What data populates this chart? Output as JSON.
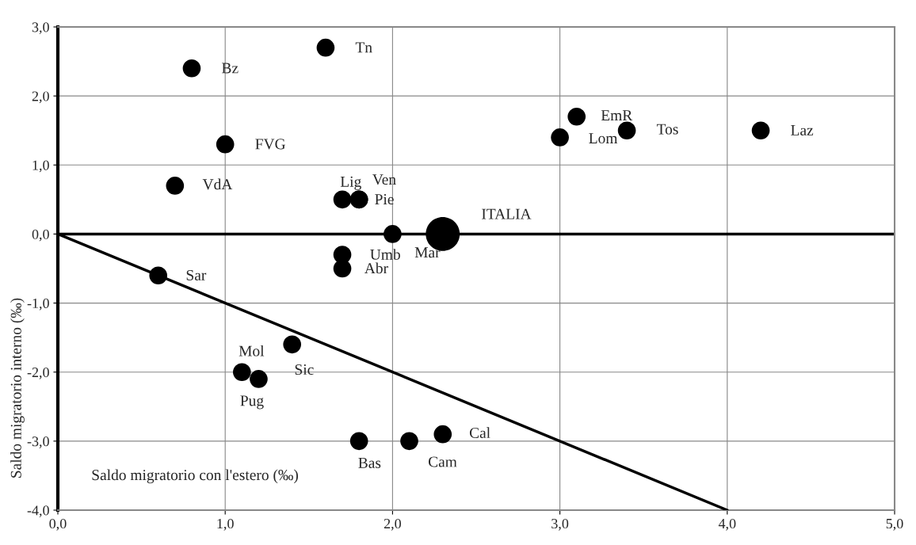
{
  "chart_data": {
    "type": "bubble",
    "xlabel": "Saldo migratorio con l'estero (‰)",
    "ylabel": "Saldo migratorio interno (‰)",
    "series": [
      {
        "marker": "circle",
        "color": "#000000",
        "x": [
          1.6,
          0.8,
          1.0,
          0.7,
          1.7,
          1.8,
          1.8,
          2.0,
          2.3,
          1.7,
          1.7,
          0.6,
          1.4,
          1.1,
          1.2,
          1.8,
          2.1,
          2.3,
          3.0,
          3.1,
          3.4,
          4.2
        ],
        "values": [
          2.7,
          2.4,
          1.3,
          0.7,
          0.5,
          0.5,
          0.5,
          0.0,
          0.0,
          -0.3,
          -0.5,
          -0.6,
          -1.6,
          -2.0,
          -2.1,
          -3.0,
          -3.0,
          -2.9,
          1.4,
          1.7,
          1.5,
          1.5
        ],
        "sizes": [
          0.28,
          0.28,
          0.28,
          0.28,
          0.28,
          0.28,
          0.28,
          0.28,
          1,
          0.28,
          0.28,
          0.28,
          0.28,
          0.28,
          0.28,
          0.28,
          0.28,
          0.28,
          0.28,
          0.28,
          0.28,
          0.28
        ]
      },
      {
        "type": "line",
        "color": "#000000",
        "x": [
          0,
          4
        ],
        "values": [
          0,
          -4
        ]
      }
    ],
    "annotations": [
      {
        "text": "Tn",
        "x": 1.6,
        "y": 2.7
      },
      {
        "text": "Bz",
        "x": 0.8,
        "y": 2.4
      },
      {
        "text": "FVG",
        "x": 1.0,
        "y": 1.3
      },
      {
        "text": "VdA",
        "x": 0.7,
        "y": 0.7
      },
      {
        "text": "Lig",
        "x": 1.7,
        "y": 0.5
      },
      {
        "text": "Ven",
        "x": 1.8,
        "y": 0.5
      },
      {
        "text": "Pie",
        "x": 1.8,
        "y": 0.5
      },
      {
        "text": "Mar",
        "x": 2.0,
        "y": 0.0
      },
      {
        "text": "ITALIA",
        "x": 2.3,
        "y": 0.0
      },
      {
        "text": "Umb",
        "x": 1.7,
        "y": -0.3
      },
      {
        "text": "Abr",
        "x": 1.7,
        "y": -0.5
      },
      {
        "text": "Sar",
        "x": 0.6,
        "y": -0.6
      },
      {
        "text": "Sic",
        "x": 1.4,
        "y": -1.6
      },
      {
        "text": "Mol",
        "x": 1.1,
        "y": -2.0
      },
      {
        "text": "Pug",
        "x": 1.2,
        "y": -2.1
      },
      {
        "text": "Bas",
        "x": 1.8,
        "y": -3.0
      },
      {
        "text": "Cam",
        "x": 2.1,
        "y": -3.0
      },
      {
        "text": "Cal",
        "x": 2.3,
        "y": -2.9
      },
      {
        "text": "Lom",
        "x": 3.0,
        "y": 1.4
      },
      {
        "text": "EmR",
        "x": 3.1,
        "y": 1.7
      },
      {
        "text": "Tos",
        "x": 3.4,
        "y": 1.5
      },
      {
        "text": "Laz",
        "x": 4.2,
        "y": 1.5
      }
    ],
    "ref_lines": [
      {
        "axis": "y",
        "value": 0,
        "color": "#000000"
      }
    ],
    "xlim": [
      0,
      5
    ],
    "ylim": [
      -4,
      3
    ],
    "xticks": [
      {
        "value": 0,
        "label": "0,0"
      },
      {
        "value": 1,
        "label": "1,0"
      },
      {
        "value": 2,
        "label": "2,0"
      },
      {
        "value": 3,
        "label": "3,0"
      },
      {
        "value": 4,
        "label": "4,0"
      },
      {
        "value": 5,
        "label": "5,0"
      }
    ],
    "yticks": [
      {
        "value": -4,
        "label": "-4,0"
      },
      {
        "value": -3,
        "label": "-3,0"
      },
      {
        "value": -2,
        "label": "-2,0"
      },
      {
        "value": -1,
        "label": "-1,0"
      },
      {
        "value": 0,
        "label": "0,0"
      },
      {
        "value": 1,
        "label": "1,0"
      },
      {
        "value": 2,
        "label": "2,0"
      },
      {
        "value": 3,
        "label": "3,0"
      }
    ],
    "grid": true,
    "legend": false
  }
}
